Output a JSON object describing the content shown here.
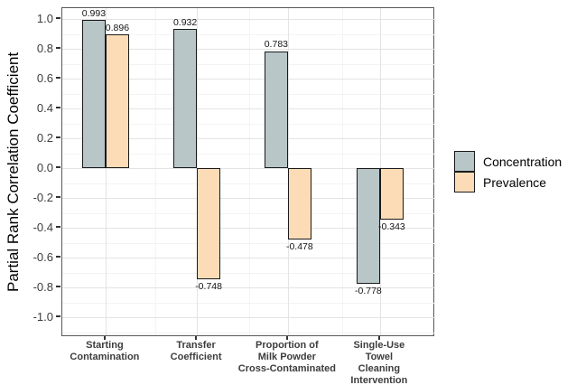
{
  "chart_data": {
    "type": "bar",
    "title": "",
    "xlabel": "",
    "ylabel": "Partial Rank Correlation Coefficient",
    "ylim": [
      -1.0,
      1.0
    ],
    "yticks": [
      "1.0",
      "0.8",
      "0.6",
      "0.4",
      "0.2",
      "0.0",
      "-0.2",
      "-0.4",
      "-0.6",
      "-0.8",
      "-1.0"
    ],
    "grid": "boxed panel, light-gray major gridlines every 0.2, minor every 0.1",
    "legend_position": "right",
    "bar_outline_color": "#1a1a1a",
    "panel_border_color": "#595959",
    "categories": [
      {
        "lines": [
          "Starting",
          "Contamination"
        ]
      },
      {
        "lines": [
          "Transfer",
          "Coefficient"
        ]
      },
      {
        "lines": [
          "Proportion of",
          "Milk Powder",
          "Cross-Contaminated"
        ]
      },
      {
        "lines": [
          "Single-Use",
          "Towel",
          "Cleaning",
          "Intervention"
        ]
      }
    ],
    "series": [
      {
        "name": "Concentration",
        "color": "#b8c6c8",
        "values": [
          0.993,
          0.932,
          0.783,
          -0.778
        ],
        "labels": [
          "0.993",
          "0.932",
          "0.783",
          "-0.778"
        ]
      },
      {
        "name": "Prevalence",
        "color": "#fcdcb6",
        "values": [
          0.896,
          -0.748,
          -0.478,
          -0.343
        ],
        "labels": [
          "0.896",
          "-0.748",
          "-0.478",
          "-0.343"
        ]
      }
    ]
  }
}
